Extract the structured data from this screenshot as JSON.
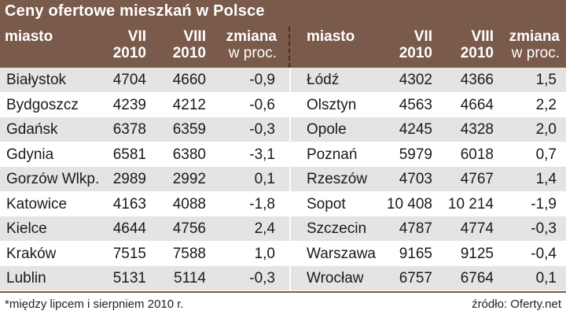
{
  "colors": {
    "header_bg": "#7a5a4a",
    "header_text": "#ffffff",
    "row_alt": "#e5e4e2",
    "row_plain": "#ffffff"
  },
  "chart_data": {
    "type": "table",
    "title": "Ceny ofertowe mieszkań w Polsce",
    "columns": [
      {
        "key": "city",
        "label": "miasto"
      },
      {
        "key": "jul",
        "label_line1": "VII",
        "label_line2": "2010"
      },
      {
        "key": "aug",
        "label_line1": "VIII",
        "label_line2": "2010"
      },
      {
        "key": "chg",
        "label_line1": "zmiana",
        "label_line2": "w proc."
      }
    ],
    "left_rows": [
      {
        "city": "Białystok",
        "jul": "4704",
        "aug": "4660",
        "chg": "-0,9"
      },
      {
        "city": "Bydgoszcz",
        "jul": "4239",
        "aug": "4212",
        "chg": "-0,6"
      },
      {
        "city": "Gdańsk",
        "jul": "6378",
        "aug": "6359",
        "chg": "-0,3"
      },
      {
        "city": "Gdynia",
        "jul": "6581",
        "aug": "6380",
        "chg": "-3,1"
      },
      {
        "city": "Gorzów Wlkp.",
        "jul": "2989",
        "aug": "2992",
        "chg": "0,1"
      },
      {
        "city": "Katowice",
        "jul": "4163",
        "aug": "4088",
        "chg": "-1,8"
      },
      {
        "city": "Kielce",
        "jul": "4644",
        "aug": "4756",
        "chg": "2,4"
      },
      {
        "city": "Kraków",
        "jul": "7515",
        "aug": "7588",
        "chg": "1,0"
      },
      {
        "city": "Lublin",
        "jul": "5131",
        "aug": "5114",
        "chg": "-0,3"
      }
    ],
    "right_rows": [
      {
        "city": "Łódź",
        "jul": "4302",
        "aug": "4366",
        "chg": "1,5"
      },
      {
        "city": "Olsztyn",
        "jul": "4563",
        "aug": "4664",
        "chg": "2,2"
      },
      {
        "city": "Opole",
        "jul": "4245",
        "aug": "4328",
        "chg": "2,0"
      },
      {
        "city": "Poznań",
        "jul": "5979",
        "aug": "6018",
        "chg": "0,7"
      },
      {
        "city": "Rzeszów",
        "jul": "4703",
        "aug": "4767",
        "chg": "1,4"
      },
      {
        "city": "Sopot",
        "jul": "10 408",
        "aug": "10 214",
        "chg": "-1,9"
      },
      {
        "city": "Szczecin",
        "jul": "4787",
        "aug": "4774",
        "chg": "-0,3"
      },
      {
        "city": "Warszawa",
        "jul": "9165",
        "aug": "9125",
        "chg": "-0,4"
      },
      {
        "city": "Wrocław",
        "jul": "6757",
        "aug": "6764",
        "chg": "0,1"
      }
    ]
  },
  "footer": {
    "note": "*między lipcem i sierpniem 2010 r.",
    "source": "źródło: Oferty.net"
  }
}
